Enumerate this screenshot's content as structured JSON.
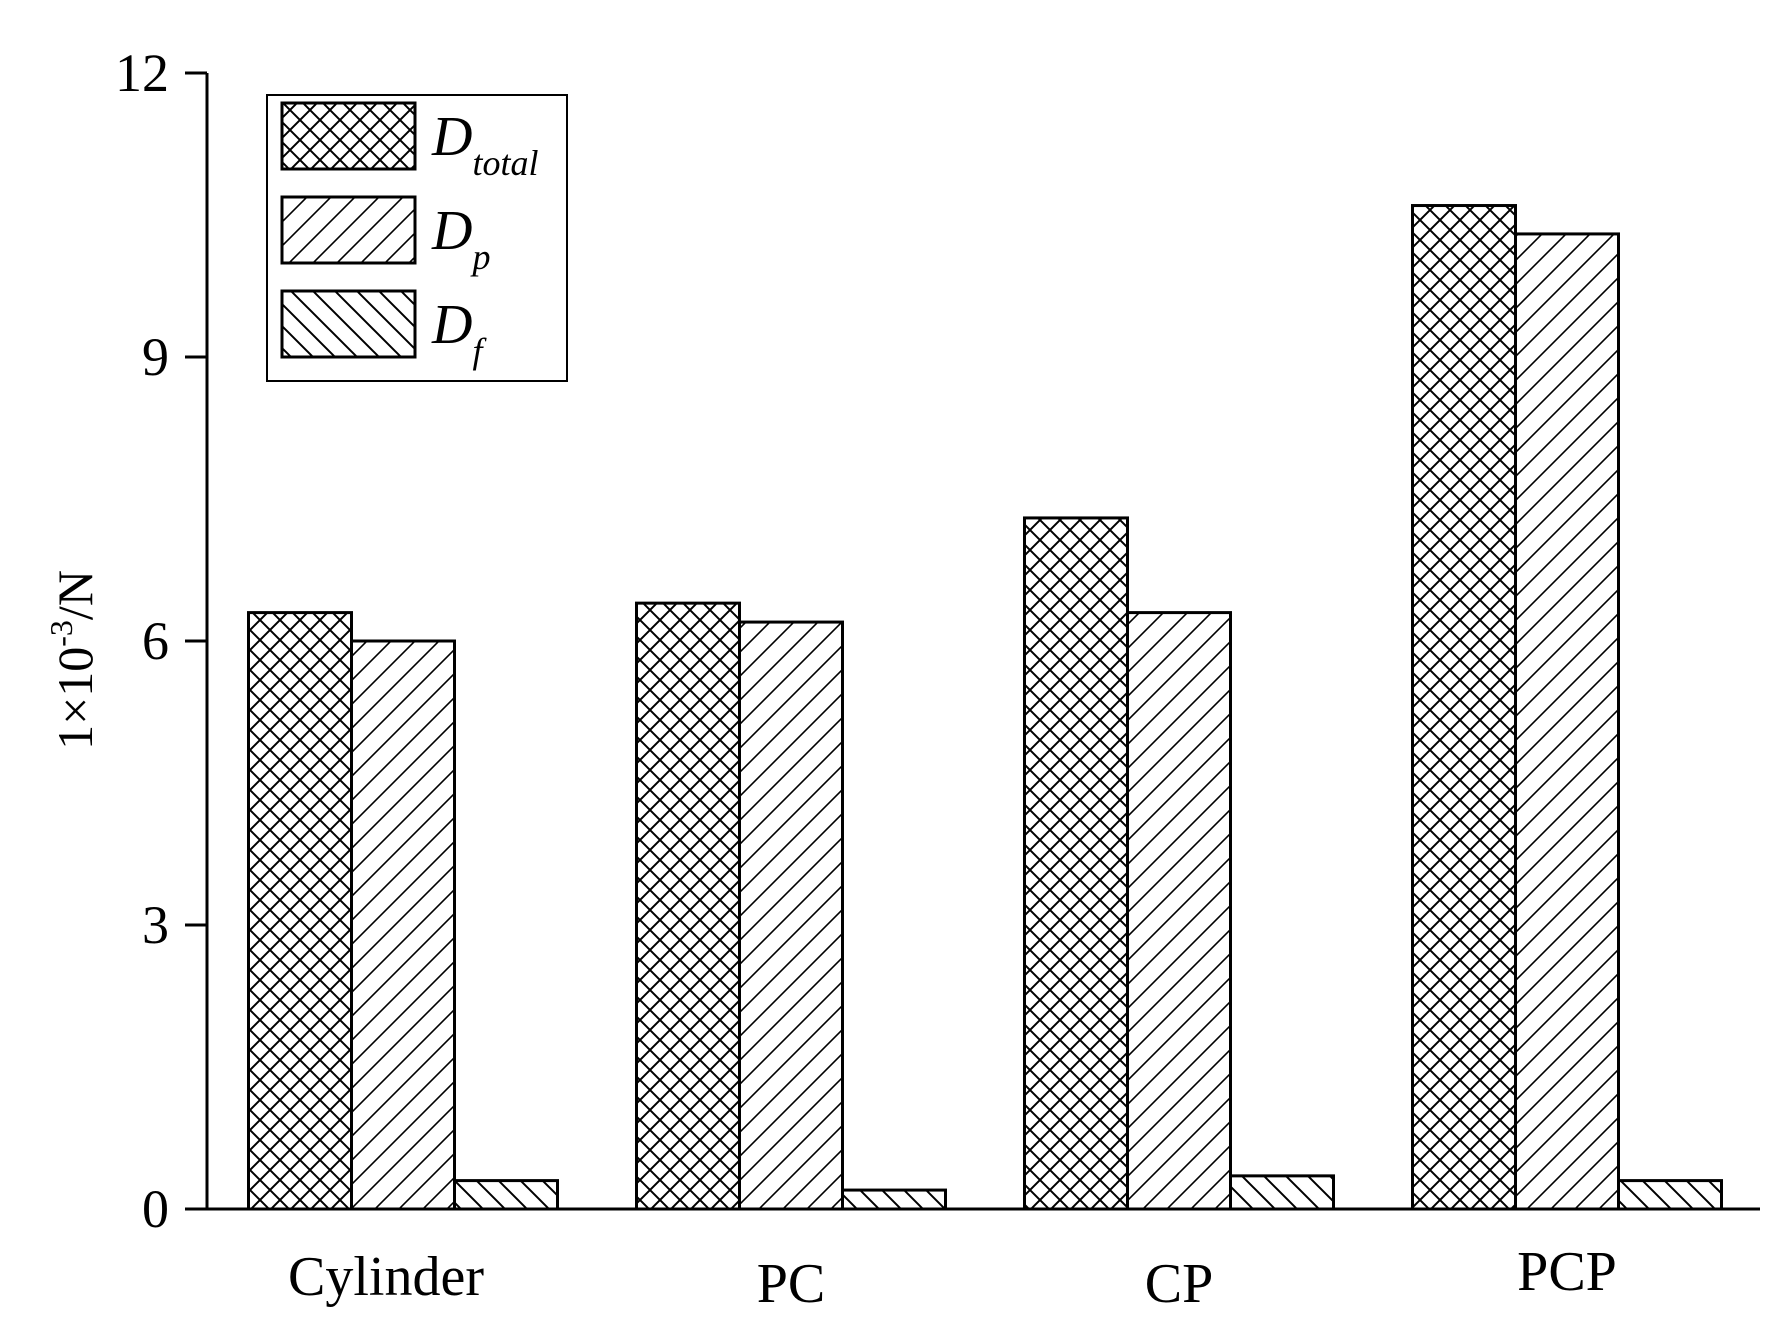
{
  "chart_data": {
    "type": "bar",
    "categories": [
      "Cylinder",
      "PC",
      "CP",
      "PCP"
    ],
    "series": [
      {
        "name_main": "D",
        "name_sub": "total",
        "values": [
          6.3,
          6.4,
          7.3,
          10.6
        ],
        "pattern": "crosshatch"
      },
      {
        "name_main": "D",
        "name_sub": "p",
        "values": [
          6.0,
          6.2,
          6.3,
          10.3
        ],
        "pattern": "forward-diagonal"
      },
      {
        "name_main": "D",
        "name_sub": "f",
        "values": [
          0.3,
          0.2,
          0.35,
          0.3
        ],
        "pattern": "backward-diagonal"
      }
    ],
    "ylabel_base": "1×10",
    "ylabel_exp": "-3",
    "ylabel_unit": "/N",
    "ylim": [
      0,
      12
    ],
    "yticks": [
      0,
      3,
      6,
      9,
      12
    ],
    "grid": false,
    "legend_position": "top-left"
  }
}
